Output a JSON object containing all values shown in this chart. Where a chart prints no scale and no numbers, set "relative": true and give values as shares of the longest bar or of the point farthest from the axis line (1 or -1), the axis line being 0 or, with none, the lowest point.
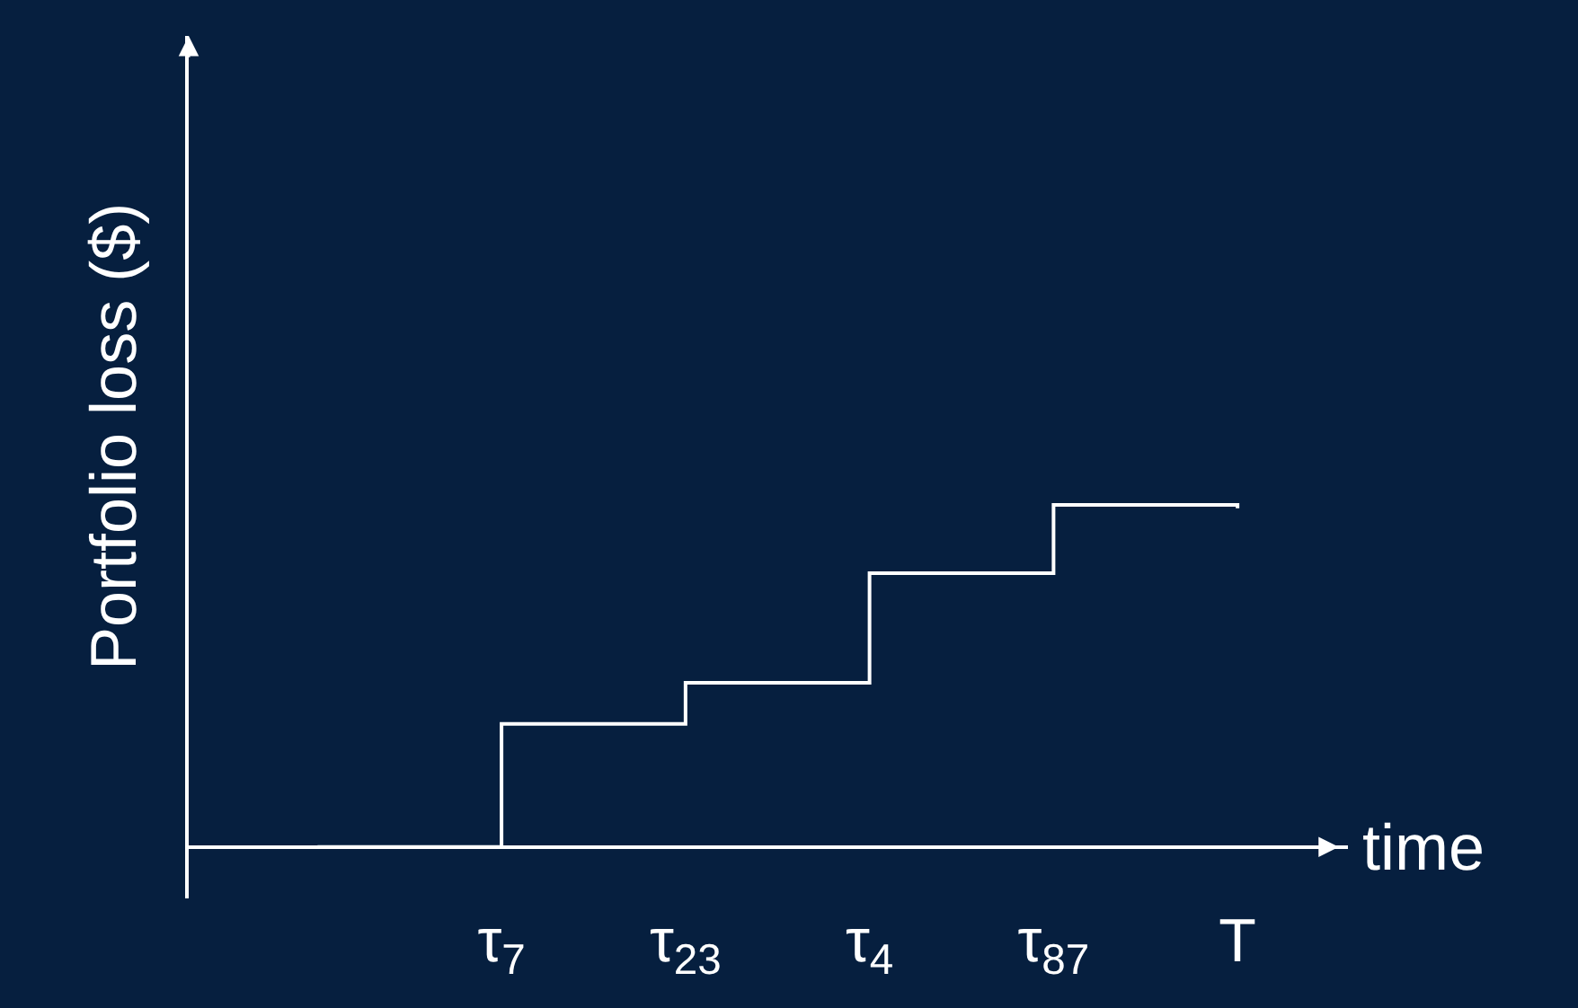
{
  "chart_data": {
    "type": "step",
    "relative": true,
    "categories": [
      null,
      "τ$_{7}$",
      "τ$_{23}$",
      "τ$_{4}$",
      "τ$_{87}$",
      "T"
    ],
    "series": [
      {
        "color": "#ffffff",
        "values": [
          0,
          0.36,
          0.48,
          0.8,
          1.0,
          0.99
        ]
      }
    ],
    "xlabel": "time",
    "ylabel": "Portfolio loss ($)",
    "grid": false,
    "marker": "none",
    "line_style": "solid"
  }
}
